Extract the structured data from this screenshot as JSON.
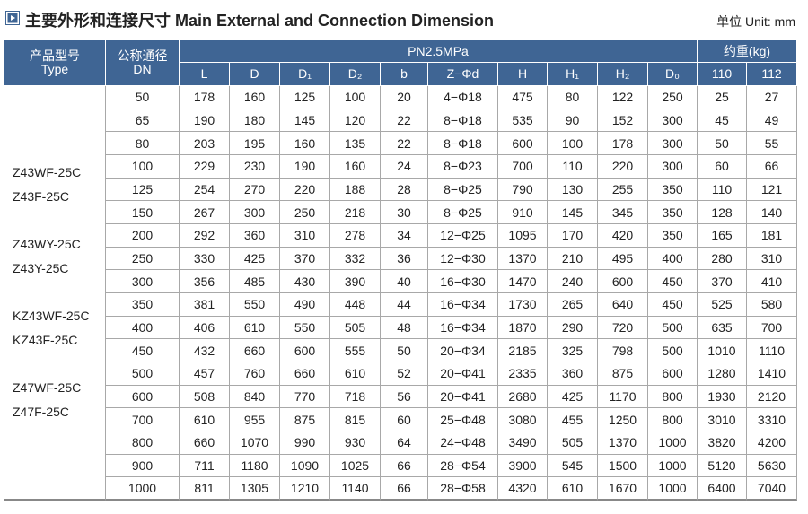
{
  "header": {
    "title": "主要外形和连接尺寸 Main External and Connection Dimension",
    "unit": "单位 Unit: mm"
  },
  "table": {
    "type_header": [
      "产品型号",
      "Type"
    ],
    "dn_header": [
      "公称通径",
      "DN"
    ],
    "pressure": "PN2.5MPa",
    "weight_header": "约重(kg)",
    "columns": [
      "L",
      "D",
      "D₁",
      "D₂",
      "b",
      "Z−Φd",
      "H",
      "H₁",
      "H₂",
      "D₀",
      "110",
      "112"
    ],
    "types": [
      "Z43WF-25C",
      "Z43F-25C",
      "Z43WY-25C",
      "Z43Y-25C",
      "KZ43WF-25C",
      "KZ43F-25C",
      "Z47WF-25C",
      "Z47F-25C"
    ],
    "rows": [
      [
        50,
        178,
        160,
        125,
        100,
        20,
        "4−Φ18",
        475,
        80,
        122,
        250,
        25,
        27
      ],
      [
        65,
        190,
        180,
        145,
        120,
        22,
        "8−Φ18",
        535,
        90,
        152,
        300,
        45,
        49
      ],
      [
        80,
        203,
        195,
        160,
        135,
        22,
        "8−Φ18",
        600,
        100,
        178,
        300,
        50,
        55
      ],
      [
        100,
        229,
        230,
        190,
        160,
        24,
        "8−Φ23",
        700,
        110,
        220,
        300,
        60,
        66
      ],
      [
        125,
        254,
        270,
        220,
        188,
        28,
        "8−Φ25",
        790,
        130,
        255,
        350,
        110,
        121
      ],
      [
        150,
        267,
        300,
        250,
        218,
        30,
        "8−Φ25",
        910,
        145,
        345,
        350,
        128,
        140
      ],
      [
        200,
        292,
        360,
        310,
        278,
        34,
        "12−Φ25",
        1095,
        170,
        420,
        350,
        165,
        181
      ],
      [
        250,
        330,
        425,
        370,
        332,
        36,
        "12−Φ30",
        1370,
        210,
        495,
        400,
        280,
        310
      ],
      [
        300,
        356,
        485,
        430,
        390,
        40,
        "16−Φ30",
        1470,
        240,
        600,
        450,
        370,
        410
      ],
      [
        350,
        381,
        550,
        490,
        448,
        44,
        "16−Φ34",
        1730,
        265,
        640,
        450,
        525,
        580
      ],
      [
        400,
        406,
        610,
        550,
        505,
        48,
        "16−Φ34",
        1870,
        290,
        720,
        500,
        635,
        700
      ],
      [
        450,
        432,
        660,
        600,
        555,
        50,
        "20−Φ34",
        2185,
        325,
        798,
        500,
        1010,
        1110
      ],
      [
        500,
        457,
        760,
        660,
        610,
        52,
        "20−Φ41",
        2335,
        360,
        875,
        600,
        1280,
        1410
      ],
      [
        600,
        508,
        840,
        770,
        718,
        56,
        "20−Φ41",
        2680,
        425,
        1170,
        800,
        1930,
        2120
      ],
      [
        700,
        610,
        955,
        875,
        815,
        60,
        "25−Φ48",
        3080,
        455,
        1250,
        800,
        3010,
        3310
      ],
      [
        800,
        660,
        1070,
        990,
        930,
        64,
        "24−Φ48",
        3490,
        505,
        1370,
        1000,
        3820,
        4200
      ],
      [
        900,
        711,
        1180,
        1090,
        1025,
        66,
        "28−Φ54",
        3900,
        545,
        1500,
        1000,
        5120,
        5630
      ],
      [
        1000,
        811,
        1305,
        1210,
        1140,
        66,
        "28−Φ58",
        4320,
        610,
        1670,
        1000,
        6400,
        7040
      ]
    ]
  }
}
